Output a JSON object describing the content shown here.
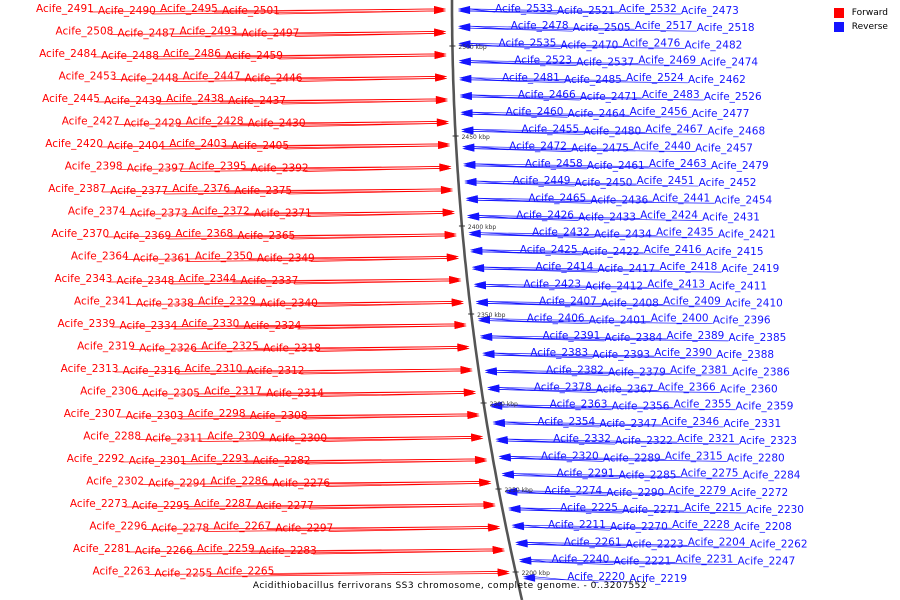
{
  "colors": {
    "forward": "#ff0000",
    "reverse": "#1414ff",
    "backbone": "#7f7f7f"
  },
  "legend": {
    "forward_label": "Forward",
    "reverse_label": "Reverse"
  },
  "caption": "Acidithiobacillus ferrivorans SS3 chromosome, complete genome. - 0..3207552",
  "ticks": [
    "2500 kbp",
    "2450 kbp",
    "2400 kbp",
    "2350 kbp",
    "2300 kbp",
    "2250 kbp",
    "2200 kbp"
  ],
  "forward_genes": [
    "Acife_2491",
    "Acife_2490",
    "Acife_2495",
    "Acife_2501",
    "Acife_2508",
    "Acife_2487",
    "Acife_2493",
    "Acife_2497",
    "Acife_2484",
    "Acife_2488",
    "Acife_2486",
    "Acife_2459",
    "Acife_2453",
    "Acife_2448",
    "Acife_2447",
    "Acife_2446",
    "Acife_2445",
    "Acife_2439",
    "Acife_2438",
    "Acife_2437",
    "Acife_2427",
    "Acife_2429",
    "Acife_2428",
    "Acife_2430",
    "Acife_2420",
    "Acife_2404",
    "Acife_2403",
    "Acife_2405",
    "Acife_2398",
    "Acife_2397",
    "Acife_2395",
    "Acife_2392",
    "Acife_2387",
    "Acife_2377",
    "Acife_2376",
    "Acife_2375",
    "Acife_2374",
    "Acife_2373",
    "Acife_2372",
    "Acife_2371",
    "Acife_2370",
    "Acife_2369",
    "Acife_2368",
    "Acife_2365",
    "Acife_2364",
    "Acife_2361",
    "Acife_2350",
    "Acife_2349",
    "Acife_2343",
    "Acife_2348",
    "Acife_2344",
    "Acife_2337",
    "Acife_2341",
    "Acife_2338",
    "Acife_2329",
    "Acife_2340",
    "Acife_2339",
    "Acife_2334",
    "Acife_2330",
    "Acife_2324",
    "Acife_2319",
    "Acife_2326",
    "Acife_2325",
    "Acife_2318",
    "Acife_2313",
    "Acife_2316",
    "Acife_2310",
    "Acife_2312",
    "Acife_2306",
    "Acife_2305",
    "Acife_2317",
    "Acife_2314",
    "Acife_2307",
    "Acife_2303",
    "Acife_2298",
    "Acife_2308",
    "Acife_2288",
    "Acife_2311",
    "Acife_2309",
    "Acife_2300",
    "Acife_2292",
    "Acife_2301",
    "Acife_2293",
    "Acife_2282",
    "Acife_2302",
    "Acife_2294",
    "Acife_2286",
    "Acife_2276",
    "Acife_2273",
    "Acife_2295",
    "Acife_2287",
    "Acife_2277",
    "Acife_2296",
    "Acife_2278",
    "Acife_2267",
    "Acife_2297",
    "Acife_2281",
    "Acife_2266",
    "Acife_2259",
    "Acife_2283",
    "Acife_2263",
    "Acife_2255",
    "Acife_2265"
  ],
  "reverse_genes": [
    "Acife_2533",
    "Acife_2521",
    "Acife_2532",
    "Acife_2473",
    "Acife_2478",
    "Acife_2505",
    "Acife_2517",
    "Acife_2518",
    "Acife_2535",
    "Acife_2470",
    "Acife_2476",
    "Acife_2482",
    "Acife_2523",
    "Acife_2537",
    "Acife_2469",
    "Acife_2474",
    "Acife_2481",
    "Acife_2485",
    "Acife_2524",
    "Acife_2462",
    "Acife_2466",
    "Acife_2471",
    "Acife_2483",
    "Acife_2526",
    "Acife_2460",
    "Acife_2464",
    "Acife_2456",
    "Acife_2477",
    "Acife_2455",
    "Acife_2480",
    "Acife_2467",
    "Acife_2468",
    "Acife_2472",
    "Acife_2475",
    "Acife_2440",
    "Acife_2457",
    "Acife_2458",
    "Acife_2461",
    "Acife_2463",
    "Acife_2479",
    "Acife_2449",
    "Acife_2450",
    "Acife_2451",
    "Acife_2452",
    "Acife_2465",
    "Acife_2436",
    "Acife_2441",
    "Acife_2454",
    "Acife_2426",
    "Acife_2433",
    "Acife_2424",
    "Acife_2431",
    "Acife_2432",
    "Acife_2434",
    "Acife_2435",
    "Acife_2421",
    "Acife_2425",
    "Acife_2422",
    "Acife_2416",
    "Acife_2415",
    "Acife_2414",
    "Acife_2417",
    "Acife_2418",
    "Acife_2419",
    "Acife_2423",
    "Acife_2412",
    "Acife_2413",
    "Acife_2411",
    "Acife_2407",
    "Acife_2408",
    "Acife_2409",
    "Acife_2410",
    "Acife_2406",
    "Acife_2401",
    "Acife_2400",
    "Acife_2396",
    "Acife_2391",
    "Acife_2384",
    "Acife_2389",
    "Acife_2385",
    "Acife_2383",
    "Acife_2393",
    "Acife_2390",
    "Acife_2388",
    "Acife_2382",
    "Acife_2379",
    "Acife_2381",
    "Acife_2386",
    "Acife_2378",
    "Acife_2367",
    "Acife_2366",
    "Acife_2360",
    "Acife_2363",
    "Acife_2356",
    "Acife_2355",
    "Acife_2359",
    "Acife_2354",
    "Acife_2347",
    "Acife_2346",
    "Acife_2331",
    "Acife_2332",
    "Acife_2322",
    "Acife_2321",
    "Acife_2323",
    "Acife_2320",
    "Acife_2289",
    "Acife_2315",
    "Acife_2280",
    "Acife_2291",
    "Acife_2285",
    "Acife_2275",
    "Acife_2284",
    "Acife_2274",
    "Acife_2290",
    "Acife_2279",
    "Acife_2272",
    "Acife_2225",
    "Acife_2271",
    "Acife_2215",
    "Acife_2230",
    "Acife_2211",
    "Acife_2270",
    "Acife_2228",
    "Acife_2208",
    "Acife_2261",
    "Acife_2223",
    "Acife_2204",
    "Acife_2262",
    "Acife_2240",
    "Acife_2221",
    "Acife_2231",
    "Acife_2247",
    "Acife_2220",
    "Acife_2219"
  ]
}
